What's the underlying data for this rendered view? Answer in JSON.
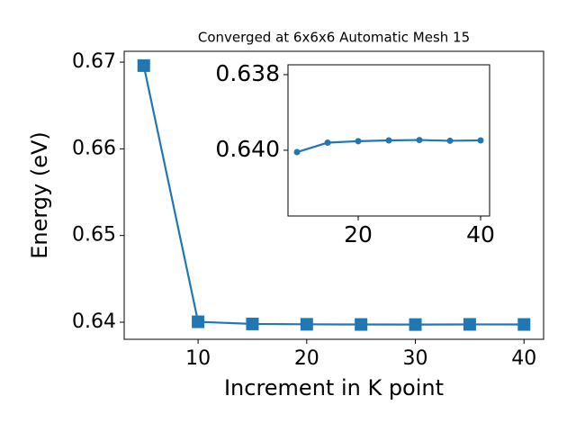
{
  "chart_data": [
    {
      "type": "line",
      "title": "Converged at 6x6x6 Automatic Mesh 15",
      "xlabel": "Increment in K point",
      "ylabel": "Energy (eV)",
      "x": [
        5,
        10,
        15,
        20,
        25,
        30,
        35,
        40
      ],
      "values": [
        0.6696,
        0.64005,
        0.6398,
        0.63976,
        0.63974,
        0.63973,
        0.63975,
        0.63974
      ],
      "color": "#1f77b4",
      "marker": "square",
      "xlim": [
        3.2,
        41.8
      ],
      "ylim": [
        0.63803,
        0.67125
      ],
      "xticks": [
        10,
        20,
        30,
        40
      ],
      "yticks": [
        0.64,
        0.65,
        0.66,
        0.67
      ]
    },
    {
      "type": "line",
      "x": [
        10,
        15,
        20,
        25,
        30,
        35,
        40
      ],
      "values": [
        0.64005,
        0.6398,
        0.63976,
        0.63974,
        0.63973,
        0.63975,
        0.63974
      ],
      "color": "#1f77b4",
      "marker": "circle",
      "xlim": [
        8.53,
        41.47
      ],
      "ylim": [
        0.64174,
        0.63774
      ],
      "xticks": [
        20,
        40
      ],
      "yticks": [
        {
          "value": 0.638,
          "label": "0.638"
        },
        {
          "value": 0.64,
          "label": "0.640"
        }
      ]
    }
  ]
}
